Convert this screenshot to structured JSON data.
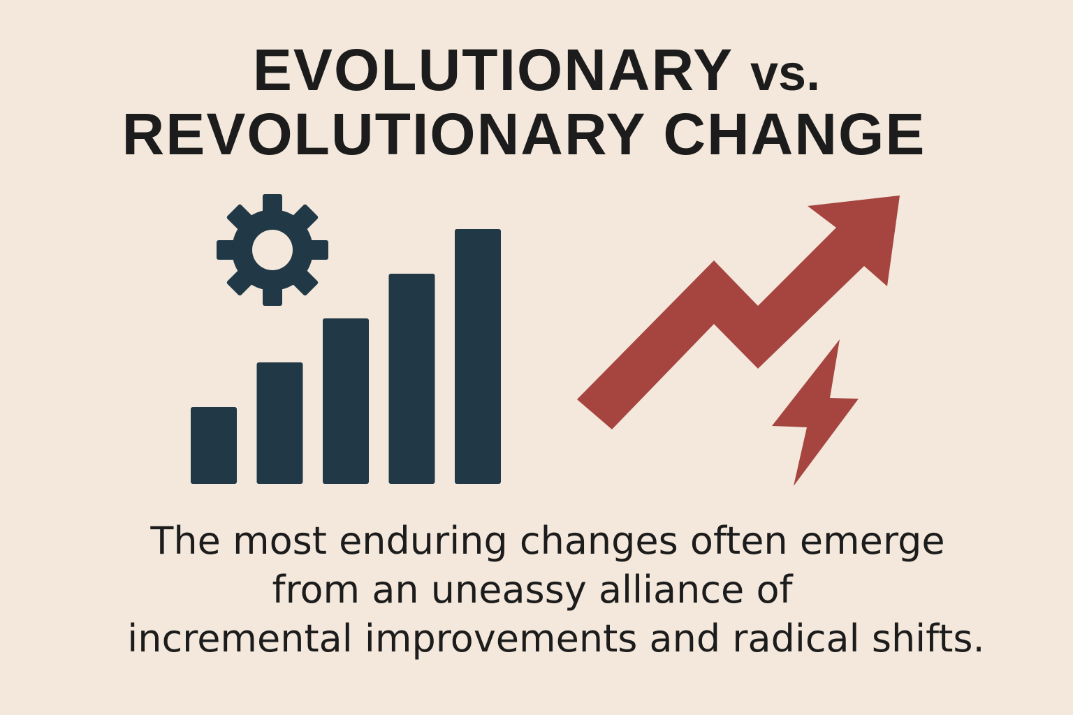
{
  "title": {
    "line1_main": "EVOLUTIONARY ",
    "line1_vs": "vs.",
    "line2": "REVOLUTIONARY CHANGE"
  },
  "caption": {
    "line1": "The most enduring changes often emerge",
    "line2": "from an uneassy alliance of",
    "line3": "incremental improvements and radical shifts."
  },
  "colors": {
    "background": "#F3E8DB",
    "text": "#1C1C1C",
    "navy": "#213847",
    "red": "#A64540"
  },
  "icons": {
    "gear": "gear-icon",
    "bars": "rising-bar-chart-icon",
    "arrow": "zigzag-up-arrow-icon",
    "bolt": "lightning-bolt-icon"
  },
  "bar_levels": [
    1,
    2,
    3,
    4,
    5
  ]
}
